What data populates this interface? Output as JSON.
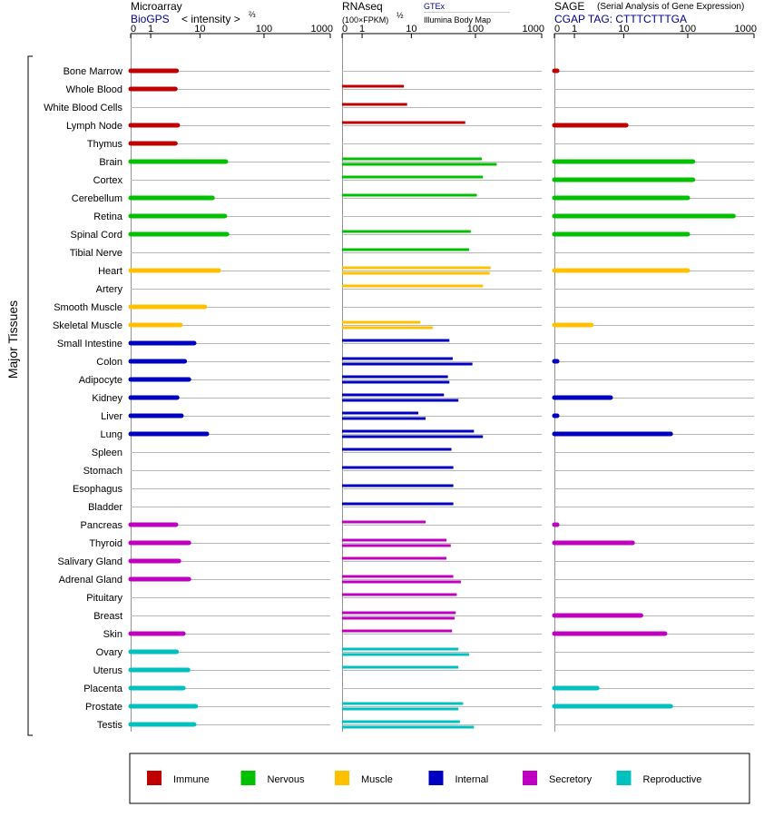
{
  "panels": {
    "microarray": {
      "title": "Microarray",
      "source": "BioGPS",
      "unit": "< intensity >",
      "exp": "⅔"
    },
    "rnaseq": {
      "title": "RNAseq",
      "unit": "(100×FPKM)",
      "exp": "½",
      "source1": "GTEx",
      "source2": "Illumina Body Map"
    },
    "sage": {
      "title": "SAGE",
      "subtitle": "(Serial Analysis of Gene Expression)",
      "tag": "CGAP TAG: CTTTCTTTGA"
    }
  },
  "axis_ticks": [
    "0",
    "1",
    "10",
    "100",
    "1000"
  ],
  "group_label": "Major Tissues",
  "colors": {
    "Immune": "#c00000",
    "Nervous": "#00c000",
    "Muscle": "#ffc000",
    "Internal": "#0000c0",
    "Secretory": "#c000c0",
    "Reproductive": "#00c0c0"
  },
  "legend": [
    "Immune",
    "Nervous",
    "Muscle",
    "Internal",
    "Secretory",
    "Reproductive"
  ],
  "chart_data": {
    "type": "bar",
    "scale": "log1p",
    "xlim": [
      0,
      1000
    ],
    "tissues": [
      {
        "name": "Bone Marrow",
        "system": "Immune",
        "microarray": [
          3.9
        ],
        "rnaseq": [],
        "sage": [
          0.1
        ]
      },
      {
        "name": "Whole Blood",
        "system": "Immune",
        "microarray": [
          3.7
        ],
        "rnaseq": [
          7.5
        ],
        "sage": []
      },
      {
        "name": "White Blood Cells",
        "system": "Immune",
        "microarray": [],
        "rnaseq": [
          8.5
        ],
        "sage": []
      },
      {
        "name": "Lymph Node",
        "system": "Immune",
        "microarray": [
          4.1
        ],
        "rnaseq": [
          70
        ],
        "sage": [
          11
        ]
      },
      {
        "name": "Thymus",
        "system": "Immune",
        "microarray": [
          3.7
        ],
        "rnaseq": [],
        "sage": []
      },
      {
        "name": "Brain",
        "system": "Nervous",
        "microarray": [
          26
        ],
        "rnaseq": [
          125,
          210
        ],
        "sage": [
          120
        ]
      },
      {
        "name": "Cortex",
        "system": "Nervous",
        "microarray": [],
        "rnaseq": [
          130
        ],
        "sage": [
          120
        ]
      },
      {
        "name": "Cerebellum",
        "system": "Nervous",
        "microarray": [
          16
        ],
        "rnaseq": [
          105
        ],
        "sage": [
          100
        ]
      },
      {
        "name": "Retina",
        "system": "Nervous",
        "microarray": [
          25
        ],
        "rnaseq": [],
        "sage": [
          490
        ]
      },
      {
        "name": "Spinal Cord",
        "system": "Nervous",
        "microarray": [
          27
        ],
        "rnaseq": [
          85
        ],
        "sage": [
          100
        ]
      },
      {
        "name": "Tibial Nerve",
        "system": "Nervous",
        "microarray": [],
        "rnaseq": [
          80
        ],
        "sage": []
      },
      {
        "name": "Heart",
        "system": "Muscle",
        "microarray": [
          20
        ],
        "rnaseq": [
          170,
          165
        ],
        "sage": [
          100
        ]
      },
      {
        "name": "Artery",
        "system": "Muscle",
        "microarray": [],
        "rnaseq": [
          130
        ],
        "sage": []
      },
      {
        "name": "Smooth Muscle",
        "system": "Muscle",
        "microarray": [
          12
        ],
        "rnaseq": [],
        "sage": []
      },
      {
        "name": "Skeletal Muscle",
        "system": "Muscle",
        "microarray": [
          4.6
        ],
        "rnaseq": [
          14,
          22
        ],
        "sage": [
          2.6
        ]
      },
      {
        "name": "Small Intestine",
        "system": "Internal",
        "microarray": [
          8
        ],
        "rnaseq": [
          40
        ],
        "sage": []
      },
      {
        "name": "Colon",
        "system": "Internal",
        "microarray": [
          5.5
        ],
        "rnaseq": [
          45,
          90
        ],
        "sage": [
          0.1
        ]
      },
      {
        "name": "Adipocyte",
        "system": "Internal",
        "microarray": [
          6.5
        ],
        "rnaseq": [
          38,
          40
        ],
        "sage": []
      },
      {
        "name": "Kidney",
        "system": "Internal",
        "microarray": [
          4
        ],
        "rnaseq": [
          33,
          55
        ],
        "sage": [
          6
        ]
      },
      {
        "name": "Liver",
        "system": "Internal",
        "microarray": [
          4.8
        ],
        "rnaseq": [
          13,
          17
        ],
        "sage": [
          0.1
        ]
      },
      {
        "name": "Lung",
        "system": "Internal",
        "microarray": [
          13
        ],
        "rnaseq": [
          95,
          130
        ],
        "sage": [
          55
        ]
      },
      {
        "name": "Spleen",
        "system": "Internal",
        "microarray": [],
        "rnaseq": [
          43
        ],
        "sage": []
      },
      {
        "name": "Stomach",
        "system": "Internal",
        "microarray": [],
        "rnaseq": [
          46
        ],
        "sage": []
      },
      {
        "name": "Esophagus",
        "system": "Internal",
        "microarray": [],
        "rnaseq": [
          46
        ],
        "sage": []
      },
      {
        "name": "Bladder",
        "system": "Internal",
        "microarray": [],
        "rnaseq": [
          46
        ],
        "sage": []
      },
      {
        "name": "Pancreas",
        "system": "Secretory",
        "microarray": [
          3.8
        ],
        "rnaseq": [
          17
        ],
        "sage": [
          0.1
        ]
      },
      {
        "name": "Thyroid",
        "system": "Secretory",
        "microarray": [
          6.5
        ],
        "rnaseq": [
          36,
          42
        ],
        "sage": [
          14
        ]
      },
      {
        "name": "Salivary Gland",
        "system": "Secretory",
        "microarray": [
          4.3
        ],
        "rnaseq": [
          36
        ],
        "sage": []
      },
      {
        "name": "Adrenal Gland",
        "system": "Secretory",
        "microarray": [
          6.5
        ],
        "rnaseq": [
          46,
          60
        ],
        "sage": []
      },
      {
        "name": "Pituitary",
        "system": "Secretory",
        "microarray": [],
        "rnaseq": [
          52
        ],
        "sage": []
      },
      {
        "name": "Breast",
        "system": "Secretory",
        "microarray": [],
        "rnaseq": [
          50,
          48
        ],
        "sage": [
          19
        ]
      },
      {
        "name": "Skin",
        "system": "Secretory",
        "microarray": [
          5.2
        ],
        "rnaseq": [
          44
        ],
        "sage": [
          45
        ]
      },
      {
        "name": "Ovary",
        "system": "Reproductive",
        "microarray": [
          3.9
        ],
        "rnaseq": [
          55,
          80
        ],
        "sage": []
      },
      {
        "name": "Uterus",
        "system": "Reproductive",
        "microarray": [
          6.3
        ],
        "rnaseq": [
          55
        ],
        "sage": []
      },
      {
        "name": "Placenta",
        "system": "Reproductive",
        "microarray": [
          5.2
        ],
        "rnaseq": [],
        "sage": [
          3.4
        ]
      },
      {
        "name": "Prostate",
        "system": "Reproductive",
        "microarray": [
          8.5
        ],
        "rnaseq": [
          65,
          55
        ],
        "sage": [
          55
        ]
      },
      {
        "name": "Testis",
        "system": "Reproductive",
        "microarray": [
          8
        ],
        "rnaseq": [
          58,
          95
        ],
        "sage": []
      }
    ]
  }
}
